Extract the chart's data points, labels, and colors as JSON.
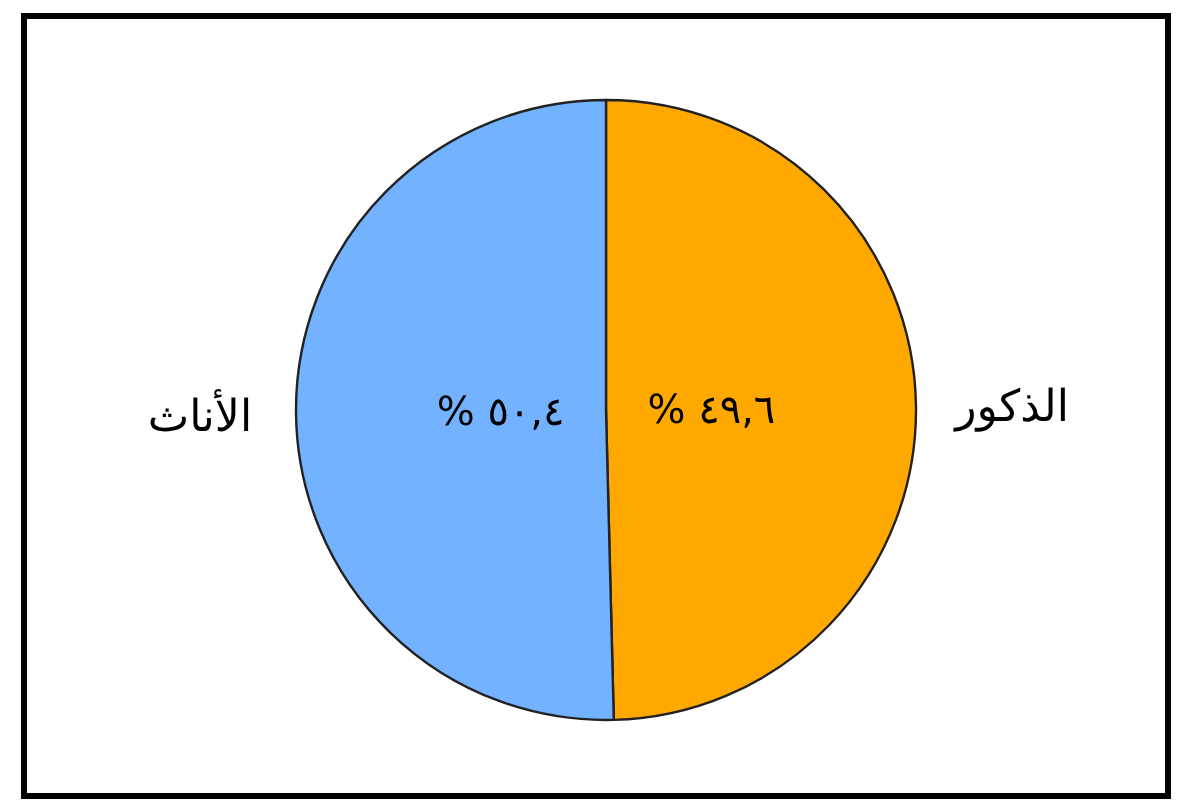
{
  "chart_data": {
    "type": "pie",
    "categories": [
      "الذكور",
      "الأناث"
    ],
    "values": [
      49.6,
      50.4
    ],
    "colors": [
      "#ffa800",
      "#72b2ff"
    ],
    "value_labels": [
      "٤٩,٦ %",
      "٥٠,٤ %"
    ]
  }
}
